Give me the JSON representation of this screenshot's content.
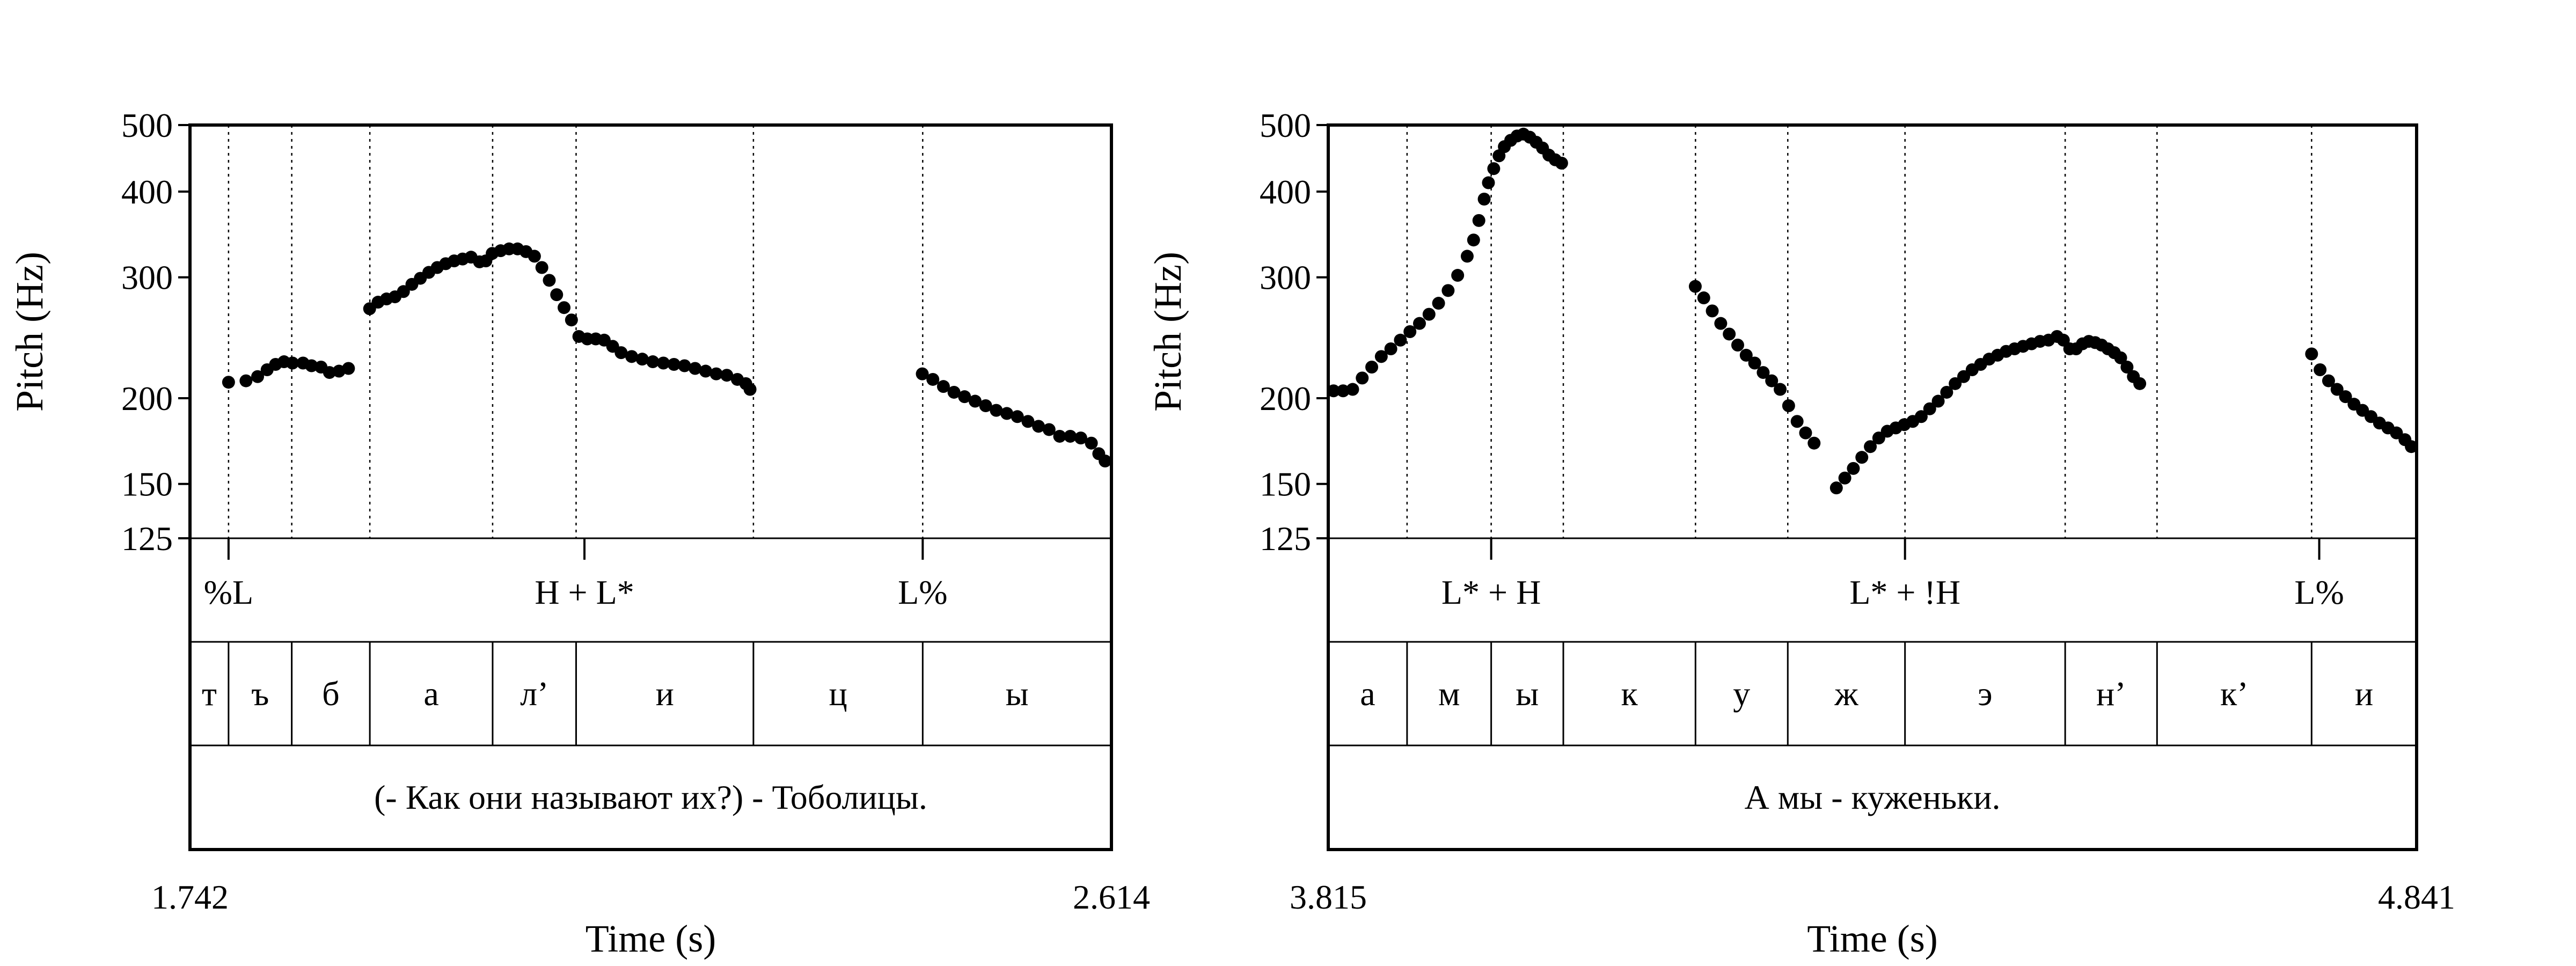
{
  "chart_data": [
    {
      "type": "scatter",
      "ylabel": "Pitch (Hz)",
      "xlabel": "Time (s)",
      "xlim": [
        1.742,
        2.614
      ],
      "ylim": [
        125,
        500
      ],
      "y_scale": "log",
      "y_ticks": [
        125,
        150,
        200,
        300,
        400,
        500
      ],
      "x_tick_labels": [
        "1.742",
        "2.614"
      ],
      "tones": [
        {
          "label": "%L",
          "t": 1.7785
        },
        {
          "label": "H + L*",
          "t": 2.1153
        },
        {
          "label": "L%",
          "t": 2.4354
        }
      ],
      "segments": [
        {
          "label": "т",
          "start": 1.742,
          "end": 1.7785
        },
        {
          "label": "ъ",
          "start": 1.7785,
          "end": 1.8383
        },
        {
          "label": "б",
          "start": 1.8383,
          "end": 1.9122
        },
        {
          "label": "а",
          "start": 1.9122,
          "end": 2.0284
        },
        {
          "label": "л’",
          "start": 2.0284,
          "end": 2.1074
        },
        {
          "label": "и",
          "start": 2.1074,
          "end": 2.2752
        },
        {
          "label": "ц",
          "start": 2.2752,
          "end": 2.4354
        },
        {
          "label": "ы",
          "start": 2.4354,
          "end": 2.614
        }
      ],
      "utterance": "(- Как они называют их?) - Тоболицы.",
      "series": [
        {
          "x": [
            1.7785,
            1.795,
            1.806,
            1.815,
            1.823,
            1.831,
            1.839,
            1.849,
            1.857,
            1.866,
            1.874,
            1.883,
            1.892
          ],
          "y": [
            211,
            212,
            215,
            220,
            224,
            226,
            225,
            225,
            223,
            222,
            218,
            219,
            221
          ]
        },
        {
          "x": [
            1.912,
            1.92,
            1.928,
            1.936,
            1.944,
            1.952,
            1.96,
            1.968,
            1.976,
            1.984,
            1.992,
            2.0,
            2.008,
            2.016,
            2.022
          ],
          "y": [
            270,
            276,
            279,
            281,
            286,
            293,
            299,
            305,
            310,
            314,
            317,
            319,
            321,
            316,
            317
          ]
        },
        {
          "x": [
            2.028,
            2.036,
            2.044,
            2.052,
            2.06,
            2.068,
            2.075,
            2.082,
            2.089,
            2.096,
            2.103,
            2.11,
            2.118,
            2.126,
            2.134,
            2.142,
            2.15,
            2.16,
            2.17,
            2.18,
            2.19,
            2.2,
            2.21,
            2.22,
            2.23,
            2.24,
            2.25,
            2.26,
            2.268,
            2.272
          ],
          "y": [
            325,
            328,
            330,
            330,
            327,
            322,
            310,
            297,
            283,
            271,
            260,
            246,
            244,
            244,
            243,
            238,
            233,
            230,
            228,
            226,
            225,
            224,
            223,
            221,
            219,
            217,
            216,
            213,
            210,
            206
          ]
        },
        {
          "x": [
            2.435,
            2.445,
            2.455,
            2.465,
            2.475,
            2.485,
            2.495,
            2.505,
            2.515,
            2.525,
            2.535,
            2.545,
            2.555,
            2.565,
            2.575,
            2.585,
            2.595,
            2.602,
            2.608
          ],
          "y": [
            217,
            213,
            208,
            204,
            201,
            198,
            195,
            192,
            190,
            188,
            185,
            182,
            180,
            176,
            176,
            175,
            172,
            166,
            162
          ]
        }
      ]
    },
    {
      "type": "scatter",
      "ylabel": "Pitch (Hz)",
      "xlabel": "Time (s)",
      "xlim": [
        3.815,
        4.841
      ],
      "ylim": [
        125,
        500
      ],
      "y_scale": "log",
      "y_ticks": [
        125,
        150,
        200,
        300,
        400,
        500
      ],
      "x_tick_labels": [
        "3.815",
        "4.841"
      ],
      "tones": [
        {
          "label": "L* + H",
          "t": 3.9686
        },
        {
          "label": "L* + !H",
          "t": 4.3587
        },
        {
          "label": "L%",
          "t": 4.7492
        }
      ],
      "segments": [
        {
          "label": "а",
          "start": 3.815,
          "end": 3.8893
        },
        {
          "label": "м",
          "start": 3.8893,
          "end": 3.9686
        },
        {
          "label": "ы",
          "start": 3.9686,
          "end": 4.0366
        },
        {
          "label": "к",
          "start": 4.0366,
          "end": 4.1612
        },
        {
          "label": "у",
          "start": 4.1612,
          "end": 4.2482
        },
        {
          "label": "ж",
          "start": 4.2482,
          "end": 4.3587
        },
        {
          "label": "э",
          "start": 4.3587,
          "end": 4.5097
        },
        {
          "label": "н’",
          "start": 4.5097,
          "end": 4.5963
        },
        {
          "label": "к’",
          "start": 4.5963,
          "end": 4.742
        },
        {
          "label": "и",
          "start": 4.742,
          "end": 4.841
        }
      ],
      "utterance": "А мы - куженьки.",
      "series": [
        {
          "x": [
            3.82,
            3.829,
            3.838,
            3.847,
            3.856,
            3.865,
            3.874,
            3.883,
            3.892,
            3.901,
            3.91,
            3.919,
            3.928,
            3.937,
            3.946,
            3.952,
            3.957,
            3.962,
            3.966,
            3.971,
            3.976,
            3.981,
            3.987,
            3.993,
            3.999,
            4.005,
            4.011,
            4.017,
            4.023,
            4.029,
            4.035
          ],
          "y": [
            205,
            205,
            206,
            214,
            222,
            230,
            236,
            243,
            250,
            257,
            265,
            275,
            287,
            302,
            322,
            340,
            363,
            390,
            412,
            432,
            451,
            465,
            475,
            482,
            485,
            480,
            472,
            463,
            452,
            445,
            440
          ]
        },
        {
          "x": [
            4.161,
            4.169,
            4.177,
            4.185,
            4.193,
            4.201,
            4.209,
            4.217,
            4.225,
            4.233,
            4.241,
            4.249,
            4.257,
            4.265,
            4.273
          ],
          "y": [
            291,
            280,
            268,
            257,
            248,
            239,
            231,
            225,
            218,
            212,
            206,
            195,
            185,
            178,
            172
          ]
        },
        {
          "x": [
            4.294,
            4.302,
            4.31,
            4.318,
            4.326,
            4.334,
            4.342,
            4.35,
            4.358,
            4.366,
            4.374,
            4.382,
            4.39,
            4.398,
            4.406,
            4.414,
            4.422,
            4.43,
            4.438,
            4.446,
            4.454,
            4.462,
            4.47,
            4.478,
            4.486,
            4.494,
            4.502,
            4.508,
            4.514,
            4.52,
            4.526,
            4.532,
            4.538,
            4.544,
            4.55,
            4.556,
            4.562,
            4.568,
            4.574,
            4.58
          ],
          "y": [
            148,
            153,
            158,
            164,
            170,
            175,
            179,
            181,
            183,
            185,
            188,
            193,
            198,
            204,
            210,
            215,
            220,
            224,
            228,
            231,
            234,
            236,
            238,
            240,
            242,
            243,
            246,
            243,
            236,
            236,
            240,
            242,
            241,
            239,
            236,
            233,
            229,
            222,
            215,
            210
          ]
        },
        {
          "x": [
            4.742,
            4.75,
            4.758,
            4.766,
            4.774,
            4.782,
            4.79,
            4.798,
            4.806,
            4.814,
            4.822,
            4.83,
            4.836
          ],
          "y": [
            232,
            220,
            212,
            206,
            201,
            196,
            192,
            188,
            184,
            181,
            178,
            174,
            170
          ]
        }
      ]
    }
  ]
}
